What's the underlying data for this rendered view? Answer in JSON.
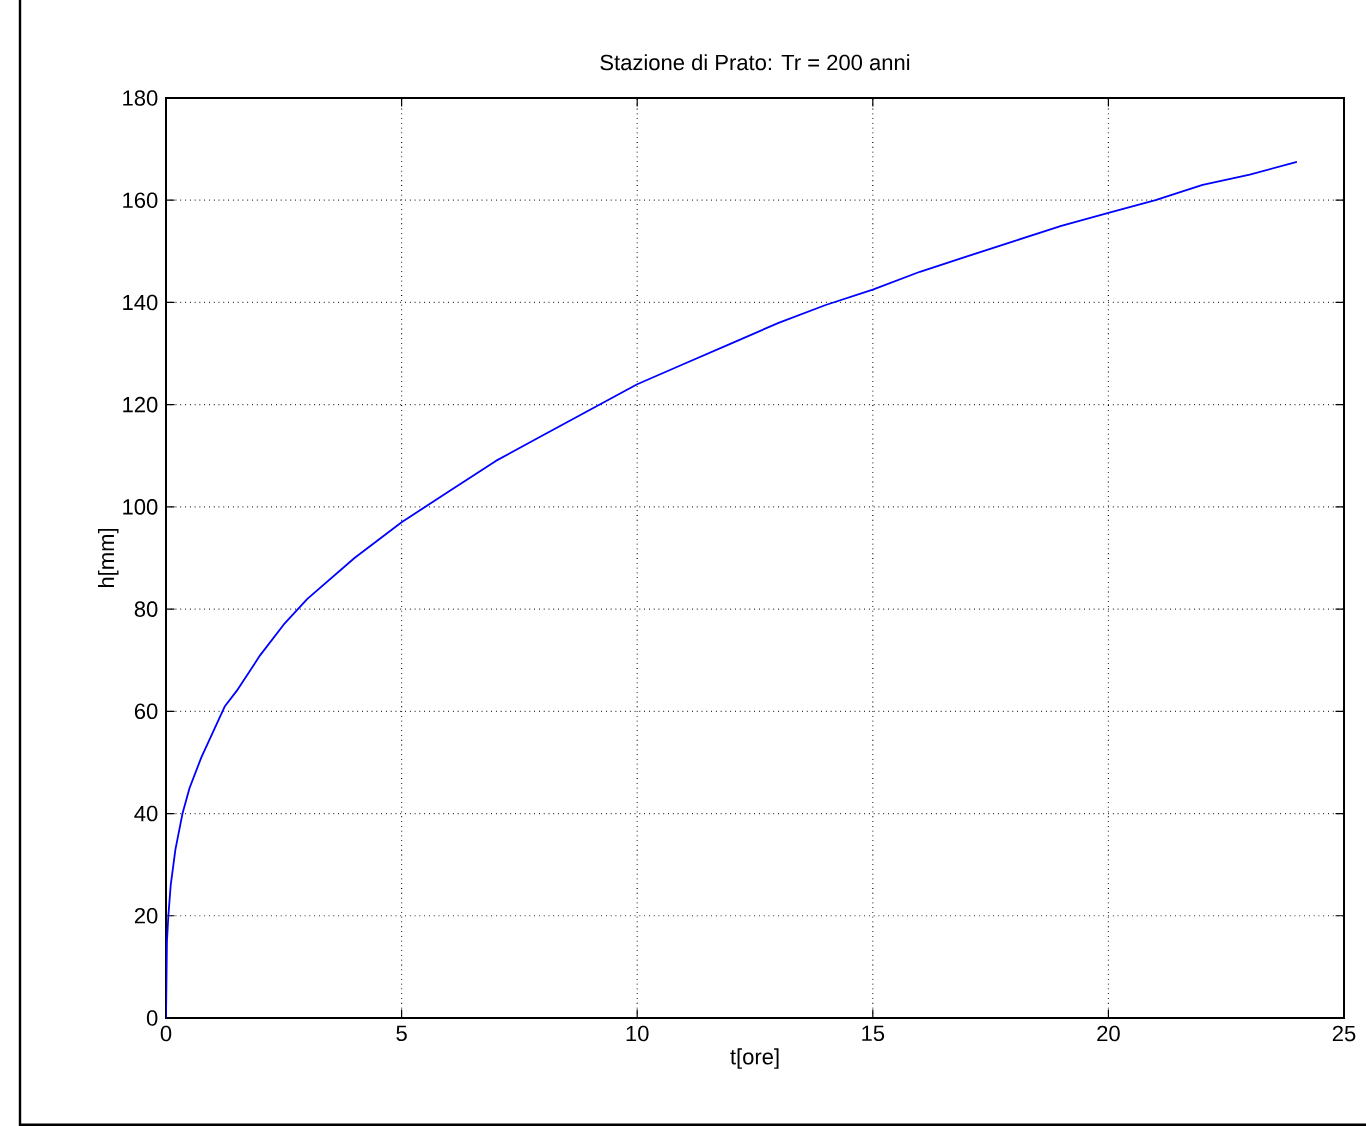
{
  "chart_data": {
    "type": "line",
    "title": "Stazione di Prato: Tr = 200 anni",
    "xlabel": "t[ore]",
    "ylabel": "h[mm]",
    "x": [
      0,
      0.02,
      0.05,
      0.1,
      0.2,
      0.35,
      0.5,
      0.75,
      1,
      1.25,
      1.5,
      2,
      2.5,
      3,
      4,
      5,
      6,
      7,
      8,
      9,
      10,
      11,
      12,
      13,
      14,
      15,
      16,
      17,
      18,
      19,
      20,
      21,
      22,
      23,
      24
    ],
    "series": [
      {
        "color": "#0000ff",
        "values": [
          0,
          15,
          20,
          26,
          33,
          40,
          45,
          51,
          56,
          61,
          64,
          71,
          77,
          82,
          90,
          97,
          103,
          109,
          114,
          119,
          124,
          128,
          132,
          136,
          139.5,
          142.5,
          146,
          149,
          152,
          155,
          157.5,
          160,
          163,
          165,
          167.5
        ]
      }
    ],
    "xlim": [
      0,
      25
    ],
    "ylim": [
      0,
      180
    ],
    "xticks": [
      0,
      5,
      10,
      15,
      20,
      25
    ],
    "yticks": [
      0,
      20,
      40,
      60,
      80,
      100,
      120,
      140,
      160,
      180
    ],
    "grid": true,
    "marker": "none",
    "line_style": "solid"
  }
}
